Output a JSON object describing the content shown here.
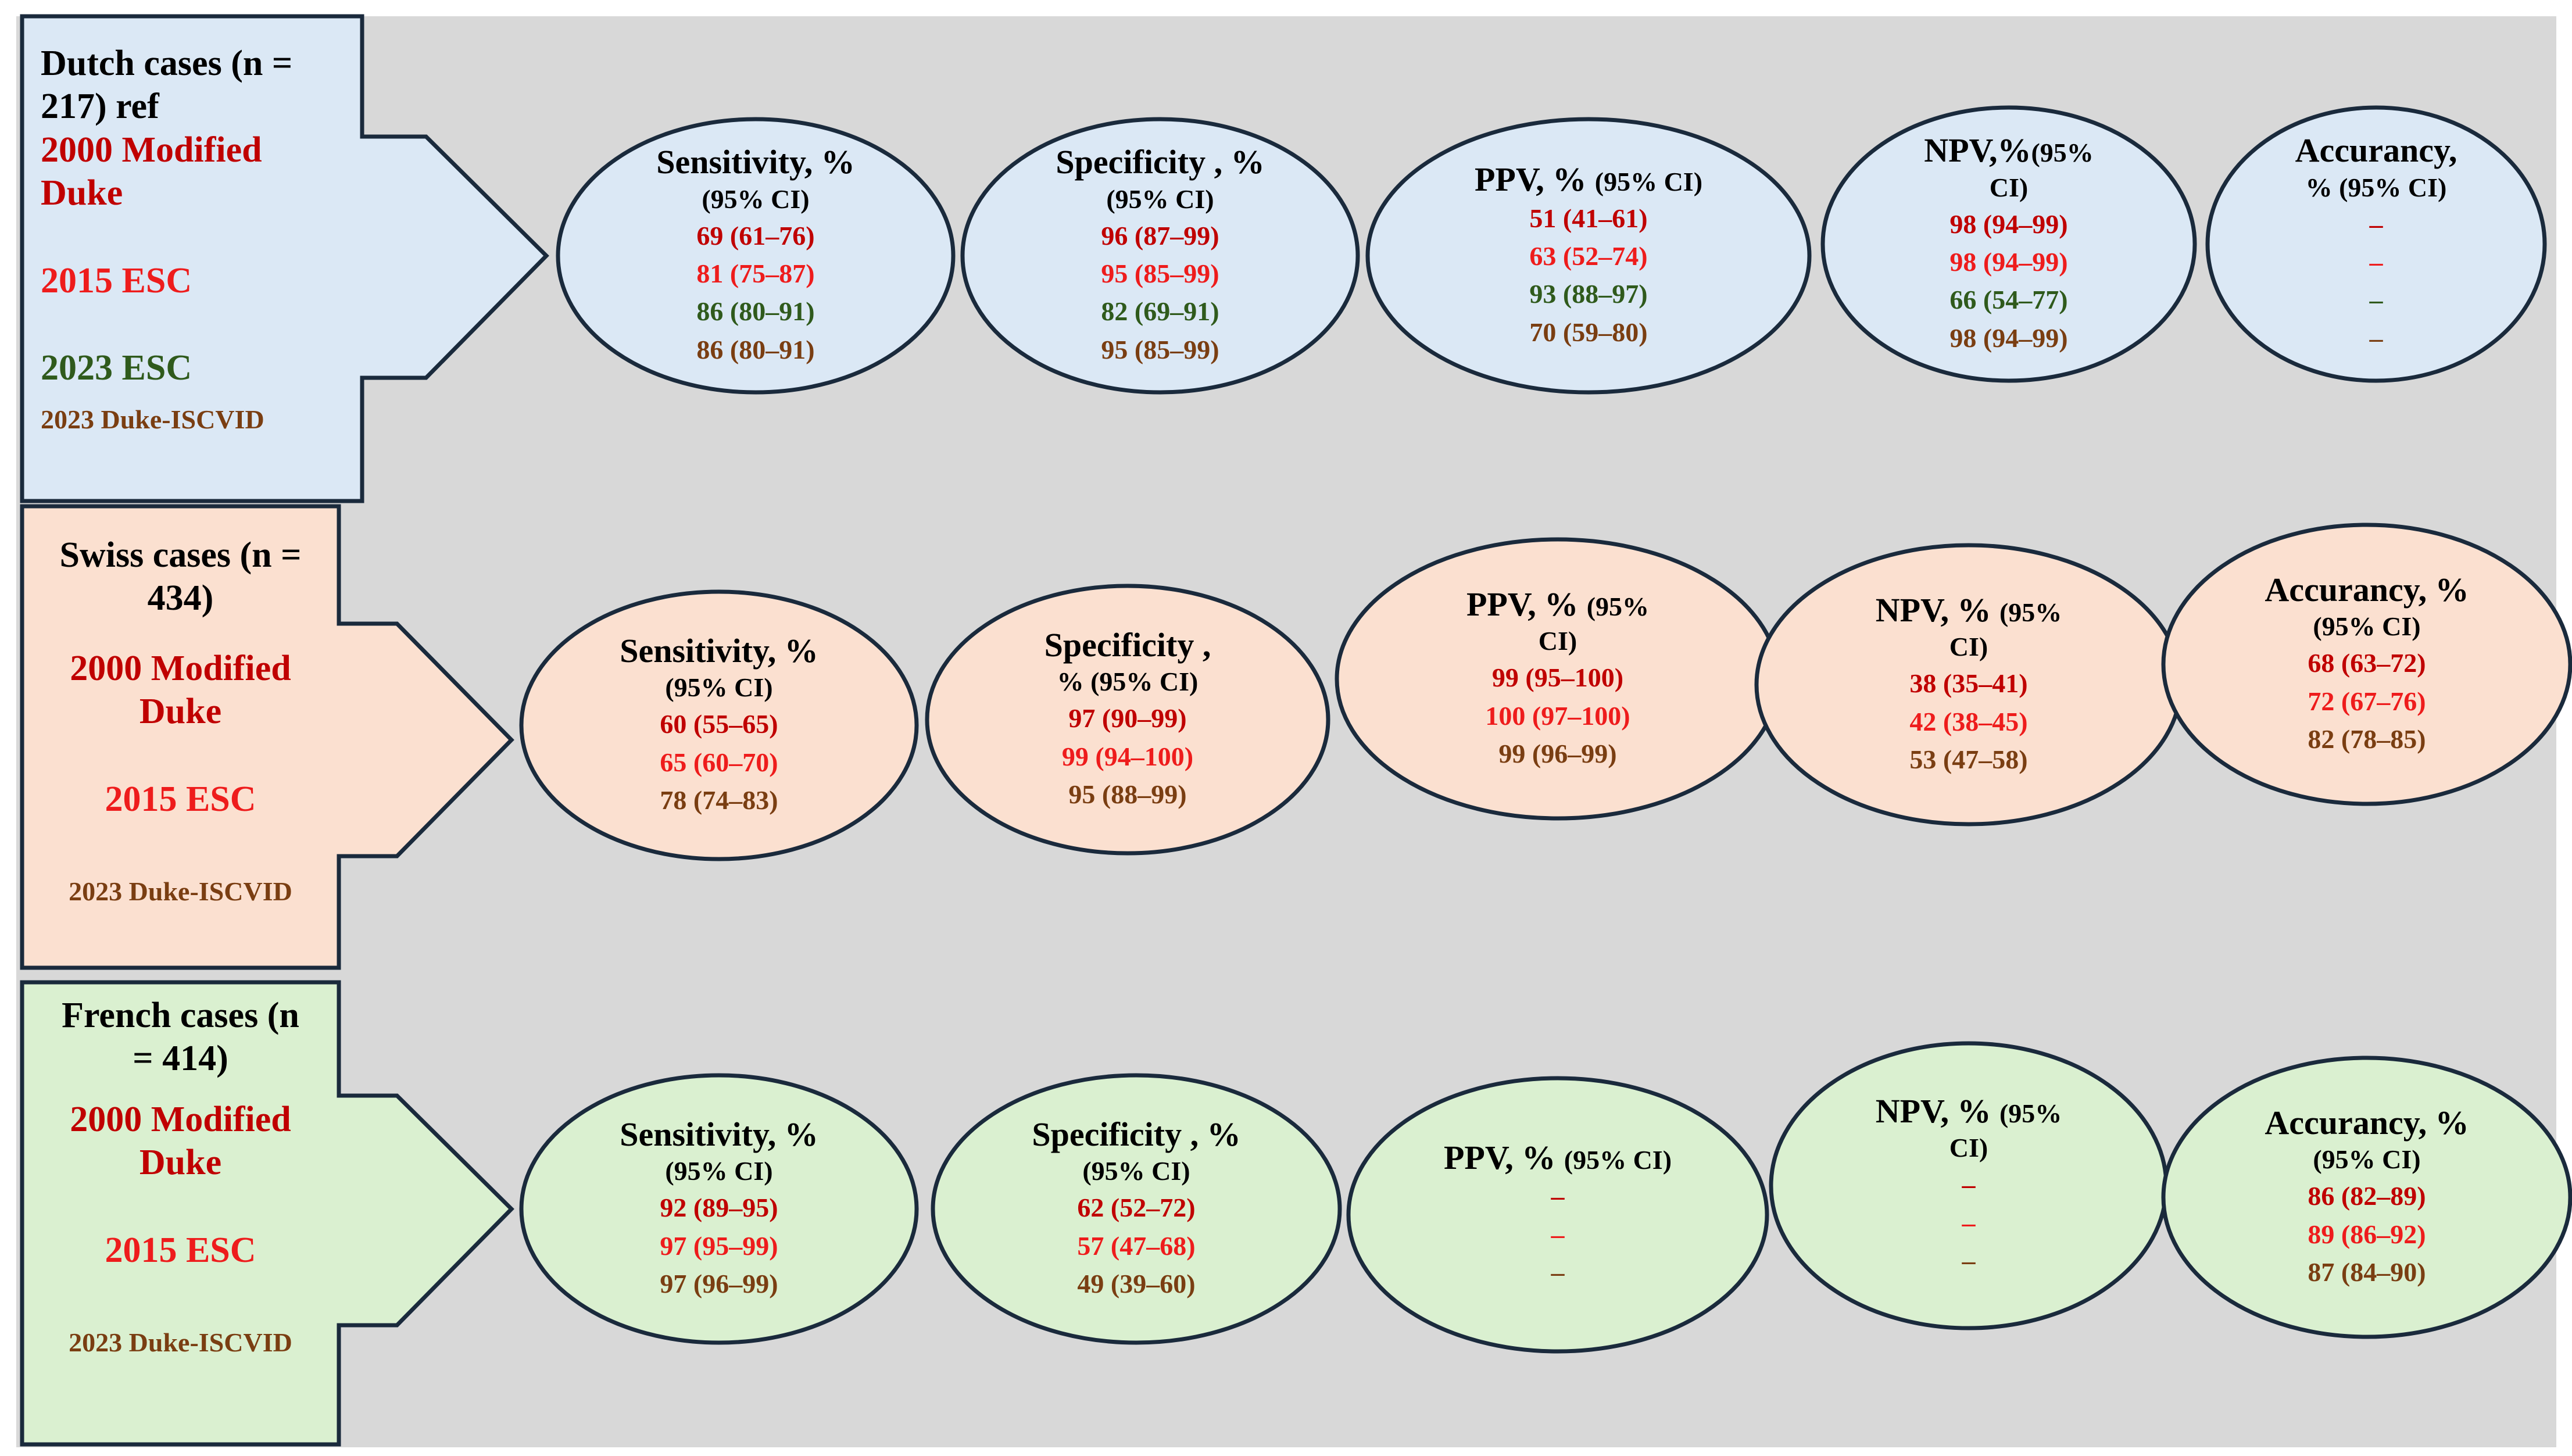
{
  "colors": {
    "dutch_fill": "#dbe8f5",
    "swiss_fill": "#fbe0d0",
    "french_fill": "#daf0d0",
    "outline": "#1a2a3c",
    "panel_bg": "#d8d8d8",
    "crit_2000": "#c00000",
    "crit_2015": "#ee1c1c",
    "crit_2023esc": "#2f5a1c",
    "crit_2023duke": "#7a3e12"
  },
  "dutch": {
    "title_1": "Dutch cases (n =",
    "title_2": "217) ref",
    "crit_2000_1": "2000 Modified",
    "crit_2000_2": "Duke",
    "crit_2015": "2015 ESC",
    "crit_2023esc": "2023 ESC",
    "crit_2023duke": "2023 Duke-ISCVID",
    "sens": {
      "title": "Sensitivity, %",
      "ci": "(95% CI)",
      "v1": "69 (61–76)",
      "v2": "81 (75–87)",
      "v3": "86 (80–91)",
      "v4": "86 (80–91)"
    },
    "spec": {
      "title": "Specificity , %",
      "ci": "(95% CI)",
      "v1": "96 (87–99)",
      "v2": "95 (85–99)",
      "v3": "82 (69–91)",
      "v4": "95 (85–99)"
    },
    "ppv": {
      "title": "PPV, %",
      "ci": "(95% CI)",
      "v1": "51 (41–61)",
      "v2": "63 (52–74)",
      "v3": "93 (88–97)",
      "v4": "70 (59–80)"
    },
    "npv": {
      "title": "NPV,%",
      "ci_a": "(95%",
      "ci_b": "CI)",
      "v1": "98 (94–99)",
      "v2": "98 (94–99)",
      "v3": "66 (54–77)",
      "v4": "98 (94–99)"
    },
    "acc": {
      "title": "Accurancy,",
      "ci": "% (95% CI)",
      "v1": "–",
      "v2": "–",
      "v3": "–",
      "v4": "–"
    }
  },
  "swiss": {
    "title_1": "Swiss cases (n =",
    "title_2": "434)",
    "crit_2000_1": "2000 Modified",
    "crit_2000_2": "Duke",
    "crit_2015": "2015 ESC",
    "crit_2023duke": "2023 Duke-ISCVID",
    "sens": {
      "title": "Sensitivity, %",
      "ci": "(95% CI)",
      "v1": "60 (55–65)",
      "v2": "65 (60–70)",
      "v3": "78 (74–83)"
    },
    "spec": {
      "title": "Specificity ,",
      "ci": "% (95% CI)",
      "v1": "97 (90–99)",
      "v2": "99 (94–100)",
      "v3": "95 (88–99)"
    },
    "ppv": {
      "title": "PPV, %",
      "ci_a": "(95%",
      "ci_b": "CI)",
      "v1": "99 (95–100)",
      "v2": "100 (97–100)",
      "v3": "99 (96–99)"
    },
    "npv": {
      "title": "NPV, %",
      "ci_a": "(95%",
      "ci_b": "CI)",
      "v1": "38 (35–41)",
      "v2": "42 (38–45)",
      "v3": "53 (47–58)"
    },
    "acc": {
      "title": "Accurancy, %",
      "ci": "(95% CI)",
      "v1": "68 (63–72)",
      "v2": "72 (67–76)",
      "v3": "82 (78–85)"
    }
  },
  "french": {
    "title_1": "French cases (n",
    "title_2": "= 414)",
    "crit_2000_1": "2000 Modified",
    "crit_2000_2": "Duke",
    "crit_2015": "2015 ESC",
    "crit_2023duke": "2023 Duke-ISCVID",
    "sens": {
      "title": "Sensitivity, %",
      "ci": "(95% CI)",
      "v1": "92 (89–95)",
      "v2": "97 (95–99)",
      "v3": "97 (96–99)"
    },
    "spec": {
      "title": "Specificity , %",
      "ci": "(95% CI)",
      "v1": "62 (52–72)",
      "v2": "57 (47–68)",
      "v3": "49 (39–60)"
    },
    "ppv": {
      "title": "PPV, %",
      "ci": "(95% CI)",
      "v1": "–",
      "v2": "–",
      "v3": "–"
    },
    "npv": {
      "title": "NPV, %",
      "ci_a": "(95%",
      "ci_b": "CI)",
      "v1": "–",
      "v2": "–",
      "v3": "–"
    },
    "acc": {
      "title": "Accurancy, %",
      "ci": "(95% CI)",
      "v1": "86 (82–89)",
      "v2": "89 (86–92)",
      "v3": "87 (84–90)"
    }
  }
}
